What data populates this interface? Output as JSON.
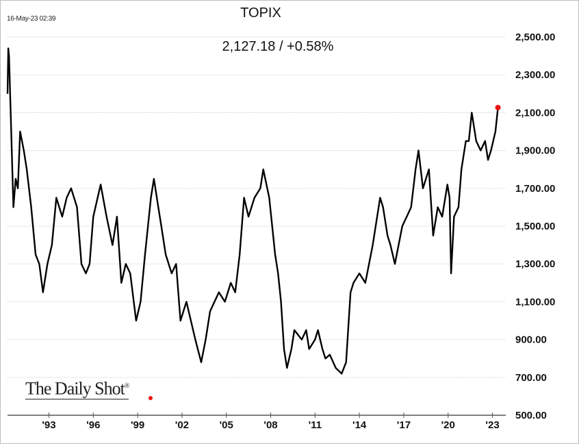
{
  "timestamp": "16-May-23 02:39",
  "logo_text": "The Daily Shot",
  "chart_data": {
    "type": "line",
    "title": "TOPIX",
    "subtitle": "2,127.18  /  +0.58%",
    "last_value": 2127.18,
    "change_pct": 0.58,
    "xlabel": "",
    "ylabel": "",
    "xlim": [
      1990.2,
      2023.9
    ],
    "ylim": [
      500,
      2500
    ],
    "grid": true,
    "y_ticks": [
      500,
      700,
      900,
      1100,
      1300,
      1500,
      1700,
      1900,
      2100,
      2300,
      2500
    ],
    "y_tick_labels": [
      "500.00",
      "700.00",
      "900.00",
      "1,100.00",
      "1,300.00",
      "1,500.00",
      "1,700.00",
      "1,900.00",
      "2,100.00",
      "2,300.00",
      "2,500.00"
    ],
    "x_ticks": [
      1993,
      1996,
      1999,
      2002,
      2005,
      2008,
      2011,
      2014,
      2017,
      2020,
      2023
    ],
    "x_tick_labels": [
      "'93",
      "'96",
      "'99",
      "'02",
      "'05",
      "'08",
      "'11",
      "'14",
      "'17",
      "'20",
      "'23"
    ],
    "series": [
      {
        "name": "TOPIX",
        "color": "#000000",
        "x": [
          1990.2,
          1990.25,
          1990.3,
          1990.45,
          1990.6,
          1990.75,
          1990.9,
          1991.05,
          1991.3,
          1991.5,
          1991.8,
          1992.1,
          1992.35,
          1992.6,
          1992.9,
          1993.2,
          1993.5,
          1993.9,
          1994.2,
          1994.5,
          1994.9,
          1995.2,
          1995.5,
          1995.75,
          1996.0,
          1996.5,
          1996.9,
          1997.3,
          1997.6,
          1997.9,
          1998.2,
          1998.5,
          1998.9,
          1999.2,
          1999.5,
          1999.9,
          2000.1,
          2000.4,
          2000.6,
          2000.9,
          2001.3,
          2001.6,
          2001.9,
          2002.3,
          2002.6,
          2002.9,
          2003.3,
          2003.6,
          2003.9,
          2004.2,
          2004.5,
          2004.9,
          2005.3,
          2005.6,
          2005.9,
          2006.2,
          2006.5,
          2006.9,
          2007.3,
          2007.5,
          2007.9,
          2008.3,
          2008.5,
          2008.7,
          2008.9,
          2009.1,
          2009.4,
          2009.6,
          2010.1,
          2010.4,
          2010.6,
          2011.0,
          2011.2,
          2011.5,
          2011.7,
          2012.0,
          2012.4,
          2012.8,
          2013.1,
          2013.4,
          2013.6,
          2014.0,
          2014.4,
          2014.9,
          2015.4,
          2015.6,
          2015.9,
          2016.1,
          2016.4,
          2016.9,
          2017.2,
          2017.5,
          2017.8,
          2018.0,
          2018.3,
          2018.7,
          2018.99,
          2019.3,
          2019.6,
          2019.95,
          2020.1,
          2020.2,
          2020.4,
          2020.7,
          2020.9,
          2021.1,
          2021.2,
          2021.4,
          2021.6,
          2021.9,
          2022.2,
          2022.5,
          2022.7,
          2022.9,
          2023.2,
          2023.37
        ],
        "values": [
          2200,
          2440,
          2400,
          2000,
          1600,
          1750,
          1700,
          2000,
          1900,
          1800,
          1600,
          1350,
          1300,
          1150,
          1300,
          1400,
          1650,
          1550,
          1650,
          1700,
          1600,
          1300,
          1250,
          1300,
          1550,
          1720,
          1550,
          1400,
          1550,
          1200,
          1300,
          1250,
          1000,
          1100,
          1350,
          1650,
          1750,
          1600,
          1500,
          1350,
          1250,
          1300,
          1000,
          1100,
          1000,
          900,
          780,
          900,
          1050,
          1100,
          1150,
          1100,
          1200,
          1150,
          1350,
          1650,
          1550,
          1650,
          1700,
          1800,
          1650,
          1350,
          1250,
          1100,
          850,
          750,
          850,
          950,
          900,
          950,
          850,
          900,
          950,
          850,
          800,
          820,
          750,
          720,
          780,
          1150,
          1200,
          1250,
          1200,
          1400,
          1650,
          1600,
          1450,
          1400,
          1300,
          1500,
          1550,
          1600,
          1800,
          1900,
          1700,
          1800,
          1450,
          1600,
          1550,
          1720,
          1650,
          1250,
          1550,
          1600,
          1800,
          1900,
          1950,
          1950,
          2100,
          1950,
          1900,
          1950,
          1850,
          1900,
          2000,
          2127
        ]
      }
    ]
  }
}
